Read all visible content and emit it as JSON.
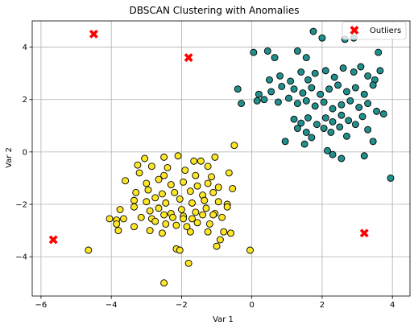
{
  "chart_data": {
    "type": "scatter",
    "title": "DBSCAN Clustering with Anomalies",
    "xlabel": "Var 1",
    "ylabel": "Var 2",
    "xlim": [
      -6.25,
      4.5
    ],
    "ylim": [
      -5.5,
      5.0
    ],
    "xticks": [
      -6,
      -4,
      -2,
      0,
      2,
      4
    ],
    "yticks": [
      -4,
      -2,
      0,
      2,
      4
    ],
    "grid": true,
    "legend_position": "top-right",
    "colors": {
      "cluster_a": "#21908c",
      "cluster_b": "#fde725",
      "outlier": "#ff0000",
      "edge": "#000000",
      "grid": "#b0b0b0"
    },
    "series": [
      {
        "key": "cluster_a",
        "points": [
          [
            0.05,
            3.8
          ],
          [
            0.45,
            3.85
          ],
          [
            0.65,
            3.6
          ],
          [
            1.3,
            3.85
          ],
          [
            1.55,
            3.6
          ],
          [
            1.75,
            4.6
          ],
          [
            2.0,
            4.35
          ],
          [
            2.65,
            4.3
          ],
          [
            2.9,
            4.35
          ],
          [
            3.6,
            3.8
          ],
          [
            0.5,
            2.75
          ],
          [
            0.8,
            2.9
          ],
          [
            1.1,
            2.7
          ],
          [
            1.4,
            3.05
          ],
          [
            1.6,
            2.75
          ],
          [
            1.8,
            3.0
          ],
          [
            2.1,
            3.1
          ],
          [
            2.35,
            2.85
          ],
          [
            2.6,
            3.2
          ],
          [
            2.9,
            3.05
          ],
          [
            3.1,
            3.25
          ],
          [
            3.3,
            2.9
          ],
          [
            3.5,
            2.75
          ],
          [
            3.65,
            3.1
          ],
          [
            -0.4,
            2.4
          ],
          [
            0.2,
            2.2
          ],
          [
            0.55,
            2.3
          ],
          [
            0.85,
            2.5
          ],
          [
            1.2,
            2.4
          ],
          [
            1.45,
            2.25
          ],
          [
            1.7,
            2.45
          ],
          [
            1.95,
            2.2
          ],
          [
            2.2,
            2.4
          ],
          [
            2.45,
            2.55
          ],
          [
            2.7,
            2.3
          ],
          [
            2.95,
            2.45
          ],
          [
            3.2,
            2.2
          ],
          [
            3.45,
            2.55
          ],
          [
            -0.3,
            1.85
          ],
          [
            0.15,
            1.95
          ],
          [
            0.35,
            2.0
          ],
          [
            0.75,
            1.9
          ],
          [
            1.05,
            2.05
          ],
          [
            1.3,
            1.85
          ],
          [
            1.55,
            1.95
          ],
          [
            1.8,
            1.75
          ],
          [
            2.05,
            1.9
          ],
          [
            2.3,
            1.65
          ],
          [
            2.55,
            1.8
          ],
          [
            2.8,
            1.95
          ],
          [
            3.05,
            1.7
          ],
          [
            3.3,
            1.85
          ],
          [
            3.55,
            1.55
          ],
          [
            1.2,
            1.25
          ],
          [
            1.4,
            1.1
          ],
          [
            1.6,
            1.3
          ],
          [
            1.85,
            1.05
          ],
          [
            2.1,
            1.3
          ],
          [
            2.3,
            1.15
          ],
          [
            2.55,
            1.4
          ],
          [
            2.75,
            1.2
          ],
          [
            2.95,
            1.05
          ],
          [
            3.15,
            1.35
          ],
          [
            1.3,
            0.9
          ],
          [
            1.55,
            0.75
          ],
          [
            2.05,
            0.9
          ],
          [
            2.25,
            0.75
          ],
          [
            2.5,
            0.95
          ],
          [
            2.7,
            0.6
          ],
          [
            3.3,
            0.85
          ],
          [
            3.75,
            1.45
          ],
          [
            0.95,
            0.4
          ],
          [
            1.5,
            0.3
          ],
          [
            2.15,
            0.05
          ],
          [
            2.3,
            -0.1
          ],
          [
            2.55,
            -0.25
          ],
          [
            3.2,
            -0.15
          ],
          [
            3.45,
            0.4
          ],
          [
            3.95,
            -1.0
          ],
          [
            1.7,
            0.55
          ]
        ]
      },
      {
        "key": "cluster_b",
        "points": [
          [
            -3.05,
            -0.25
          ],
          [
            -2.5,
            -0.2
          ],
          [
            -2.1,
            -0.15
          ],
          [
            -1.65,
            -0.35
          ],
          [
            -1.45,
            -0.35
          ],
          [
            -1.05,
            -0.2
          ],
          [
            -0.5,
            0.25
          ],
          [
            -3.25,
            -0.5
          ],
          [
            -2.85,
            -0.55
          ],
          [
            -2.4,
            -0.6
          ],
          [
            -1.9,
            -0.7
          ],
          [
            -1.25,
            -0.55
          ],
          [
            -3.2,
            -0.8
          ],
          [
            -2.5,
            -0.9
          ],
          [
            -1.6,
            -0.9
          ],
          [
            -1.15,
            -0.95
          ],
          [
            -0.65,
            -0.8
          ],
          [
            -3.6,
            -1.1
          ],
          [
            -3.0,
            -1.2
          ],
          [
            -2.65,
            -1.05
          ],
          [
            -2.3,
            -1.25
          ],
          [
            -1.95,
            -1.15
          ],
          [
            -1.55,
            -1.3
          ],
          [
            -1.25,
            -1.2
          ],
          [
            -0.95,
            -1.35
          ],
          [
            -0.55,
            -1.4
          ],
          [
            -3.3,
            -1.55
          ],
          [
            -2.95,
            -1.45
          ],
          [
            -2.55,
            -1.6
          ],
          [
            -2.2,
            -1.55
          ],
          [
            -1.75,
            -1.5
          ],
          [
            -1.4,
            -1.65
          ],
          [
            -1.1,
            -1.55
          ],
          [
            -3.35,
            -1.85
          ],
          [
            -3.0,
            -1.9
          ],
          [
            -2.75,
            -1.75
          ],
          [
            -2.45,
            -1.95
          ],
          [
            -2.05,
            -1.8
          ],
          [
            -1.7,
            -1.95
          ],
          [
            -1.35,
            -1.85
          ],
          [
            -0.95,
            -1.9
          ],
          [
            -0.7,
            -2.0
          ],
          [
            -3.75,
            -2.2
          ],
          [
            -3.35,
            -2.1
          ],
          [
            -2.9,
            -2.25
          ],
          [
            -2.65,
            -2.15
          ],
          [
            -2.3,
            -2.35
          ],
          [
            -2.0,
            -2.2
          ],
          [
            -1.6,
            -2.3
          ],
          [
            -1.3,
            -2.15
          ],
          [
            -1.05,
            -2.35
          ],
          [
            -0.7,
            -2.1
          ],
          [
            -4.05,
            -2.55
          ],
          [
            -3.85,
            -2.6
          ],
          [
            -3.65,
            -2.55
          ],
          [
            -3.15,
            -2.5
          ],
          [
            -2.85,
            -2.55
          ],
          [
            -2.5,
            -2.4
          ],
          [
            -2.25,
            -2.5
          ],
          [
            -1.95,
            -2.45
          ],
          [
            -1.7,
            -2.55
          ],
          [
            -1.4,
            -2.4
          ],
          [
            -1.1,
            -2.4
          ],
          [
            -0.85,
            -2.5
          ],
          [
            -3.85,
            -2.75
          ],
          [
            -3.35,
            -2.85
          ],
          [
            -2.75,
            -2.65
          ],
          [
            -2.45,
            -2.75
          ],
          [
            -2.15,
            -2.8
          ],
          [
            -1.95,
            -2.55
          ],
          [
            -1.85,
            -2.85
          ],
          [
            -1.55,
            -2.7
          ],
          [
            -1.2,
            -2.75
          ],
          [
            -3.8,
            -3.0
          ],
          [
            -2.9,
            -3.0
          ],
          [
            -2.55,
            -3.1
          ],
          [
            -1.75,
            -3.05
          ],
          [
            -1.25,
            -3.05
          ],
          [
            -0.8,
            -3.05
          ],
          [
            -0.6,
            -3.1
          ],
          [
            -0.9,
            -3.35
          ],
          [
            -1.0,
            -3.6
          ],
          [
            -0.05,
            -3.75
          ],
          [
            -2.15,
            -3.7
          ],
          [
            -2.05,
            -3.75
          ],
          [
            -4.65,
            -3.75
          ],
          [
            -1.8,
            -4.25
          ],
          [
            -2.5,
            -5.0
          ]
        ]
      },
      {
        "key": "outlier",
        "name": "Outliers",
        "points": [
          [
            -4.5,
            4.5
          ],
          [
            -1.8,
            3.6
          ],
          [
            -5.65,
            -3.35
          ],
          [
            3.2,
            -3.1
          ]
        ]
      }
    ]
  }
}
